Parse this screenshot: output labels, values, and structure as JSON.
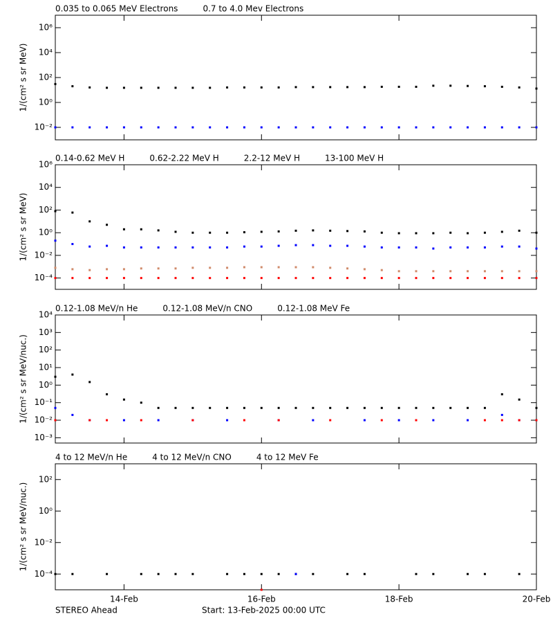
{
  "chart_data": [
    {
      "type": "scatter",
      "ylabel": "1/(cm² s sr MeV)",
      "ylog": true,
      "xlim": [
        0,
        7
      ],
      "ylim": [
        0.001,
        10000000
      ],
      "yticks": [
        {
          "value": 0.01,
          "label": "10⁻²"
        },
        {
          "value": 1,
          "label": "10⁰"
        },
        {
          "value": 100,
          "label": "10²"
        },
        {
          "value": 10000,
          "label": "10⁴"
        },
        {
          "value": 1000000,
          "label": "10⁶"
        }
      ],
      "x": [
        0,
        0.25,
        0.5,
        0.75,
        1,
        1.25,
        1.5,
        1.75,
        2,
        2.25,
        2.5,
        2.75,
        3,
        3.25,
        3.5,
        3.75,
        4,
        4.25,
        4.5,
        4.75,
        5,
        5.25,
        5.5,
        5.75,
        6,
        6.25,
        6.5,
        6.75,
        7
      ],
      "series": [
        {
          "name": "0.035 to 0.065 MeV Electrons",
          "color": "#000000",
          "values": [
            30,
            20,
            16,
            15,
            15,
            15,
            15,
            15,
            15,
            15,
            16,
            16,
            16,
            16,
            17,
            17,
            17,
            17,
            17,
            18,
            18,
            18,
            22,
            22,
            21,
            20,
            18,
            16,
            13
          ]
        },
        {
          "name": "0.7 to 4.0 Mev Electrons",
          "color": "#0000ff",
          "values": [
            0.01,
            0.01,
            0.01,
            0.01,
            0.01,
            0.01,
            0.01,
            0.01,
            0.01,
            0.01,
            0.01,
            0.01,
            0.01,
            0.01,
            0.01,
            0.01,
            0.01,
            0.01,
            0.01,
            0.01,
            0.01,
            0.01,
            0.01,
            0.01,
            0.01,
            0.01,
            0.01,
            0.01,
            0.01
          ]
        }
      ]
    },
    {
      "type": "scatter",
      "ylabel": "1/(cm² s sr MeV)",
      "ylog": true,
      "xlim": [
        0,
        7
      ],
      "ylim": [
        1e-05,
        1000000
      ],
      "yticks": [
        {
          "value": 0.0001,
          "label": "10⁻⁴"
        },
        {
          "value": 0.01,
          "label": "10⁻²"
        },
        {
          "value": 1,
          "label": "10⁰"
        },
        {
          "value": 100,
          "label": "10²"
        },
        {
          "value": 10000,
          "label": "10⁴"
        },
        {
          "value": 1000000,
          "label": "10⁶"
        }
      ],
      "x": [
        0,
        0.25,
        0.5,
        0.75,
        1,
        1.25,
        1.5,
        1.75,
        2,
        2.25,
        2.5,
        2.75,
        3,
        3.25,
        3.5,
        3.75,
        4,
        4.25,
        4.5,
        4.75,
        5,
        5.25,
        5.5,
        5.75,
        6,
        6.25,
        6.5,
        6.75,
        7
      ],
      "series": [
        {
          "name": "0.14-0.62 MeV H",
          "color": "#000000",
          "values": [
            80,
            60,
            10,
            5,
            2,
            2,
            1.6,
            1.2,
            1,
            1,
            1,
            1.1,
            1.2,
            1.3,
            1.5,
            1.6,
            1.5,
            1.4,
            1.3,
            1,
            0.9,
            0.9,
            0.9,
            1,
            0.9,
            1,
            1.2,
            1.5,
            1
          ]
        },
        {
          "name": "0.62-2.22 MeV H",
          "color": "#0000ff",
          "values": [
            0.2,
            0.1,
            0.06,
            0.07,
            0.05,
            0.05,
            0.05,
            0.05,
            0.05,
            0.05,
            0.05,
            0.06,
            0.06,
            0.07,
            0.08,
            0.08,
            0.07,
            0.07,
            0.06,
            0.05,
            0.05,
            0.05,
            0.04,
            0.05,
            0.05,
            0.05,
            0.06,
            0.06,
            0.04
          ]
        },
        {
          "name": "2.2-12 MeV H",
          "color": "#d08a6a",
          "values": [
            0.0008,
            0.0006,
            0.0005,
            0.0006,
            0.0006,
            0.0007,
            0.0007,
            0.0007,
            0.0008,
            0.0008,
            0.0008,
            0.0009,
            0.0009,
            0.0009,
            0.0009,
            0.0009,
            0.0008,
            0.0007,
            0.0006,
            0.0005,
            0.0004,
            0.0004,
            0.0004,
            0.0004,
            0.0004,
            0.0004,
            0.0004,
            0.0004,
            0.0004
          ]
        },
        {
          "name": "13-100 MeV H",
          "color": "#ff0000",
          "values": [
            0.0001,
            0.0001,
            0.0001,
            0.0001,
            0.0001,
            0.0001,
            0.0001,
            0.0001,
            0.0001,
            0.0001,
            0.0001,
            0.0001,
            0.0001,
            0.0001,
            0.0001,
            0.0001,
            0.0001,
            0.0001,
            0.0001,
            0.0001,
            0.0001,
            0.0001,
            0.0001,
            0.0001,
            0.0001,
            0.0001,
            0.0001,
            0.0001,
            0.0001
          ]
        }
      ]
    },
    {
      "type": "scatter",
      "ylabel": "1/(cm² s sr MeV/nuc.)",
      "ylog": true,
      "xlim": [
        0,
        7
      ],
      "ylim": [
        0.0005,
        10000
      ],
      "yticks": [
        {
          "value": 0.001,
          "label": "10⁻³"
        },
        {
          "value": 0.01,
          "label": "10⁻²"
        },
        {
          "value": 0.1,
          "label": "10⁻¹"
        },
        {
          "value": 1,
          "label": "10⁰"
        },
        {
          "value": 10,
          "label": "10¹"
        },
        {
          "value": 100,
          "label": "10²"
        },
        {
          "value": 1000,
          "label": "10³"
        },
        {
          "value": 10000,
          "label": "10⁴"
        }
      ],
      "x": [
        0,
        0.25,
        0.5,
        0.75,
        1,
        1.25,
        1.5,
        1.75,
        2,
        2.25,
        2.5,
        2.75,
        3,
        3.25,
        3.5,
        3.75,
        4,
        4.25,
        4.5,
        4.75,
        5,
        5.25,
        5.5,
        5.75,
        6,
        6.25,
        6.5,
        6.75,
        7
      ],
      "series": [
        {
          "name": "0.12-1.08 MeV/n He",
          "color": "#000000",
          "values": [
            3,
            4,
            1.5,
            0.3,
            0.15,
            0.1,
            0.05,
            0.05,
            0.05,
            0.05,
            0.05,
            0.05,
            0.05,
            0.05,
            0.05,
            0.05,
            0.05,
            0.05,
            0.05,
            0.05,
            0.05,
            0.05,
            0.05,
            0.05,
            0.05,
            0.05,
            0.3,
            0.15,
            0.05
          ]
        },
        {
          "name": "0.12-1.08 MeV/n CNO",
          "color": "#0000ff",
          "values": [
            0.05,
            0.02,
            0.01,
            null,
            0.01,
            null,
            0.01,
            null,
            0.01,
            null,
            0.01,
            null,
            null,
            0.01,
            null,
            0.01,
            null,
            null,
            0.01,
            null,
            0.01,
            null,
            0.01,
            null,
            0.01,
            null,
            0.02,
            0.01,
            0.01
          ]
        },
        {
          "name": "0.12-1.08 MeV Fe",
          "color": "#ff0000",
          "values": [
            0.01,
            null,
            0.01,
            0.01,
            null,
            0.01,
            null,
            null,
            0.01,
            null,
            null,
            0.01,
            null,
            0.01,
            null,
            null,
            0.01,
            null,
            null,
            0.01,
            null,
            0.01,
            null,
            null,
            null,
            0.01,
            0.01,
            0.01,
            0.01
          ]
        }
      ]
    },
    {
      "type": "scatter",
      "ylabel": "1/(cm² s sr MeV/nuc.)",
      "ylog": true,
      "xlim": [
        0,
        7
      ],
      "ylim": [
        1e-05,
        1000
      ],
      "xticks": [
        {
          "value": 1,
          "label": "14-Feb"
        },
        {
          "value": 3,
          "label": "16-Feb"
        },
        {
          "value": 5,
          "label": "18-Feb"
        },
        {
          "value": 7,
          "label": "20-Feb"
        }
      ],
      "yticks": [
        {
          "value": 0.0001,
          "label": "10⁻⁴"
        },
        {
          "value": 0.01,
          "label": "10⁻²"
        },
        {
          "value": 1,
          "label": "10⁰"
        },
        {
          "value": 100,
          "label": "10²"
        }
      ],
      "x": [
        0,
        0.25,
        0.5,
        0.75,
        1,
        1.25,
        1.5,
        1.75,
        2,
        2.25,
        2.5,
        2.75,
        3,
        3.25,
        3.5,
        3.75,
        4,
        4.25,
        4.5,
        4.75,
        5,
        5.25,
        5.5,
        5.75,
        6,
        6.25,
        6.5,
        6.75,
        7
      ],
      "series": [
        {
          "name": "4 to 12 MeV/n He",
          "color": "#000000",
          "values": [
            0.0001,
            0.0001,
            null,
            0.0001,
            null,
            0.0001,
            0.0001,
            0.0001,
            0.0001,
            null,
            0.0001,
            0.0001,
            0.0001,
            0.0001,
            0.0001,
            0.0001,
            null,
            0.0001,
            0.0001,
            null,
            null,
            0.0001,
            0.0001,
            null,
            0.0001,
            0.0001,
            null,
            0.0001,
            null
          ]
        },
        {
          "name": "4 to 12 MeV/n CNO",
          "color": "#0000ff",
          "values": [
            null,
            null,
            null,
            null,
            null,
            null,
            null,
            null,
            null,
            null,
            null,
            null,
            null,
            null,
            0.0001,
            null,
            null,
            null,
            null,
            null,
            null,
            null,
            null,
            null,
            null,
            null,
            null,
            null,
            null
          ]
        },
        {
          "name": "4 to 12 MeV Fe",
          "color": "#ff0000",
          "values": [
            null,
            null,
            null,
            null,
            null,
            null,
            null,
            null,
            null,
            null,
            null,
            null,
            1e-05,
            null,
            null,
            null,
            null,
            null,
            null,
            null,
            null,
            null,
            null,
            null,
            null,
            null,
            null,
            null,
            null
          ]
        }
      ]
    }
  ],
  "footer": {
    "spacecraft": "STEREO Ahead",
    "start": "Start: 13-Feb-2025 00:00 UTC"
  }
}
